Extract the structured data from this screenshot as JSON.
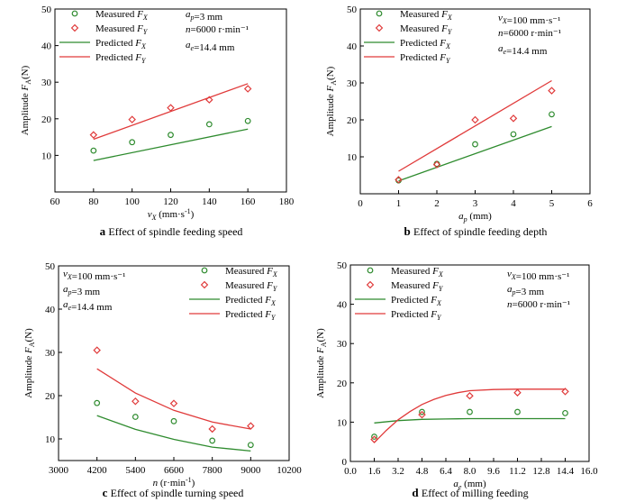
{
  "colors": {
    "measured_x": "#2e8b2e",
    "measured_y": "#e03a3a",
    "predicted_x": "#2e8b2e",
    "predicted_y": "#e03a3a",
    "axis": "#000000"
  },
  "chart_data": [
    {
      "id": "a",
      "type": "scatter",
      "panel_letter": "a",
      "caption": "Effect of spindle feeding speed",
      "xlabel_main": "v",
      "xlabel_sub": "X",
      "xlabel_unit": " (mm·s",
      "ylabel_main": "Amplitude  F",
      "ylabel_sub": "A",
      "ylabel_unit": "(N)",
      "xlim": [
        60,
        180
      ],
      "ylim": [
        0,
        50
      ],
      "xticks": [
        60,
        80,
        100,
        120,
        140,
        160,
        180
      ],
      "xtick_labels": [
        "60",
        "80",
        "100",
        "120",
        "140",
        "160",
        "180"
      ],
      "yticks": [
        0,
        10,
        20,
        30,
        40,
        50
      ],
      "ytick_labels": [
        "",
        "10",
        "20",
        "30",
        "40",
        "50"
      ],
      "series": [
        {
          "name": "Measured F_X",
          "kind": "measured",
          "marker": "circle",
          "color": "#2e8b2e",
          "x": [
            80,
            100,
            120,
            140,
            160
          ],
          "y": [
            11.3,
            13.6,
            15.6,
            18.5,
            19.4
          ]
        },
        {
          "name": "Measured F_Y",
          "kind": "measured",
          "marker": "diamond",
          "color": "#e03a3a",
          "x": [
            80,
            100,
            120,
            140,
            160
          ],
          "y": [
            15.6,
            19.8,
            23.0,
            25.2,
            28.2
          ]
        },
        {
          "name": "Predicted F_X",
          "kind": "predicted",
          "color": "#2e8b2e",
          "x": [
            80,
            160
          ],
          "y": [
            8.6,
            17.2
          ]
        },
        {
          "name": "Predicted F_Y",
          "kind": "predicted",
          "color": "#e03a3a",
          "x": [
            80,
            160
          ],
          "y": [
            14.4,
            29.6
          ]
        }
      ],
      "legend": [
        {
          "kind": "circle",
          "text": "Measured F",
          "sub": "X",
          "color": "#2e8b2e"
        },
        {
          "kind": "diamond",
          "text": "Measured F",
          "sub": "Y",
          "color": "#e03a3a"
        },
        {
          "kind": "line",
          "text": "Predicted F",
          "sub": "X",
          "color": "#2e8b2e"
        },
        {
          "kind": "line",
          "text": "Predicted F",
          "sub": "Y",
          "color": "#e03a3a"
        }
      ],
      "params": [
        "a_p=3 mm",
        "n=6000 r·min⁻¹",
        "a_e=14.4 mm"
      ]
    },
    {
      "id": "b",
      "type": "scatter",
      "panel_letter": "b",
      "caption": "Effect of spindle feeding depth",
      "xlabel_main": "a",
      "xlabel_sub": "p",
      "xlabel_unit": " (mm)",
      "ylabel_main": "Amplitude  F",
      "ylabel_sub": "A",
      "ylabel_unit": "(N)",
      "xlim": [
        0,
        6
      ],
      "ylim": [
        0,
        50
      ],
      "xticks": [
        0,
        1,
        2,
        3,
        4,
        5,
        6
      ],
      "xtick_labels": [
        "0",
        "1",
        "2",
        "3",
        "4",
        "5",
        "6"
      ],
      "yticks": [
        0,
        10,
        20,
        30,
        40,
        50
      ],
      "ytick_labels": [
        "",
        "10",
        "20",
        "30",
        "40",
        "50"
      ],
      "series": [
        {
          "name": "Measured F_X",
          "kind": "measured",
          "marker": "circle",
          "color": "#2e8b2e",
          "x": [
            1,
            2,
            3,
            4,
            5
          ],
          "y": [
            3.6,
            8.1,
            13.4,
            16.1,
            21.5
          ]
        },
        {
          "name": "Measured F_Y",
          "kind": "measured",
          "marker": "diamond",
          "color": "#e03a3a",
          "x": [
            1,
            2,
            3,
            4,
            5
          ],
          "y": [
            3.8,
            7.9,
            20.0,
            20.4,
            27.9
          ]
        },
        {
          "name": "Predicted F_X",
          "kind": "predicted",
          "color": "#2e8b2e",
          "x": [
            1,
            5
          ],
          "y": [
            3.5,
            18.2
          ]
        },
        {
          "name": "Predicted F_Y",
          "kind": "predicted",
          "color": "#e03a3a",
          "x": [
            1,
            5
          ],
          "y": [
            6.1,
            30.6
          ]
        }
      ],
      "legend": [
        {
          "kind": "circle",
          "text": "Measured F",
          "sub": "X",
          "color": "#2e8b2e"
        },
        {
          "kind": "diamond",
          "text": "Measured F",
          "sub": "Y",
          "color": "#e03a3a"
        },
        {
          "kind": "line",
          "text": "Predicted F",
          "sub": "X",
          "color": "#2e8b2e"
        },
        {
          "kind": "line",
          "text": "Predicted F",
          "sub": "Y",
          "color": "#e03a3a"
        }
      ],
      "params": [
        "v_X=100 mm·s⁻¹",
        "n=6000 r·min⁻¹",
        "a_e=14.4 mm"
      ]
    },
    {
      "id": "c",
      "type": "scatter",
      "panel_letter": "c",
      "caption": "Effect of spindle turning speed",
      "xlabel_main": "n",
      "xlabel_sub": "",
      "xlabel_unit": " (r·min",
      "ylabel_main": "Amplitude  F",
      "ylabel_sub": "A",
      "ylabel_unit": "(N)",
      "xlim": [
        3000,
        10200
      ],
      "ylim": [
        5,
        50
      ],
      "xticks": [
        3000,
        4200,
        5400,
        6600,
        7800,
        9000,
        10200
      ],
      "xtick_labels": [
        "3000",
        "4200",
        "5400",
        "6600",
        "7800",
        "9000",
        "10200"
      ],
      "yticks": [
        10,
        20,
        30,
        40,
        50
      ],
      "ytick_labels": [
        "10",
        "20",
        "30",
        "40",
        "50"
      ],
      "series": [
        {
          "name": "Measured F_X",
          "kind": "measured",
          "marker": "circle",
          "color": "#2e8b2e",
          "x": [
            4200,
            5400,
            6600,
            7800,
            9000
          ],
          "y": [
            18.3,
            15.1,
            14.1,
            9.6,
            8.6
          ]
        },
        {
          "name": "Measured F_Y",
          "kind": "measured",
          "marker": "diamond",
          "color": "#e03a3a",
          "x": [
            4200,
            5400,
            6600,
            7800,
            9000
          ],
          "y": [
            30.5,
            18.7,
            18.2,
            12.3,
            13.0
          ]
        },
        {
          "name": "Predicted F_X",
          "kind": "predicted",
          "color": "#2e8b2e",
          "x": [
            4200,
            5400,
            6600,
            7800,
            9000
          ],
          "y": [
            15.4,
            12.2,
            9.9,
            8.1,
            7.2
          ]
        },
        {
          "name": "Predicted F_Y",
          "kind": "predicted",
          "color": "#e03a3a",
          "x": [
            4200,
            5400,
            6600,
            7800,
            9000
          ],
          "y": [
            26.2,
            20.6,
            16.6,
            13.9,
            12.3
          ]
        }
      ],
      "legend": [
        {
          "kind": "circle",
          "text": "Measured F",
          "sub": "X",
          "color": "#2e8b2e"
        },
        {
          "kind": "diamond",
          "text": "Measured F",
          "sub": "Y",
          "color": "#e03a3a"
        },
        {
          "kind": "line",
          "text": "Predicted F",
          "sub": "X",
          "color": "#2e8b2e"
        },
        {
          "kind": "line",
          "text": "Predicted F",
          "sub": "Y",
          "color": "#e03a3a"
        }
      ],
      "params": [
        "v_X=100 mm·s⁻¹",
        "a_p=3 mm",
        "a_e=14.4 mm"
      ]
    },
    {
      "id": "d",
      "type": "scatter",
      "panel_letter": "d",
      "caption": "Effect of milling feeding",
      "xlabel_main": "a",
      "xlabel_sub": "e",
      "xlabel_unit": " (mm)",
      "ylabel_main": "Amplitude  F",
      "ylabel_sub": "A",
      "ylabel_unit": "(N)",
      "xlim": [
        0,
        16
      ],
      "ylim": [
        0,
        50
      ],
      "xticks": [
        0,
        1.6,
        3.2,
        4.8,
        6.4,
        8.0,
        9.6,
        11.2,
        12.8,
        14.4,
        16.0
      ],
      "xtick_labels": [
        "0.0",
        "1.6",
        "3.2",
        "4.8",
        "6.4",
        "8.0",
        "9.6",
        "11.2",
        "12.8",
        "14.4",
        "16.0"
      ],
      "yticks": [
        0,
        10,
        20,
        30,
        40,
        50
      ],
      "ytick_labels": [
        "0",
        "10",
        "20",
        "30",
        "40",
        "50"
      ],
      "series": [
        {
          "name": "Measured F_X",
          "kind": "measured",
          "marker": "circle",
          "color": "#2e8b2e",
          "x": [
            1.6,
            4.8,
            8.0,
            11.2,
            14.4
          ],
          "y": [
            6.3,
            12.6,
            12.6,
            12.6,
            12.3
          ]
        },
        {
          "name": "Measured F_Y",
          "kind": "measured",
          "marker": "diamond",
          "color": "#e03a3a",
          "x": [
            1.6,
            4.8,
            8.0,
            11.2,
            14.4
          ],
          "y": [
            5.6,
            11.9,
            16.7,
            17.5,
            17.8
          ]
        },
        {
          "name": "Predicted F_X",
          "kind": "predicted",
          "color": "#2e8b2e",
          "x": [
            1.6,
            3.2,
            4.8,
            6.4,
            8.0,
            9.6,
            11.2,
            12.8,
            14.4
          ],
          "y": [
            9.8,
            10.4,
            10.7,
            10.8,
            10.9,
            10.9,
            10.9,
            10.9,
            10.9
          ]
        },
        {
          "name": "Predicted F_Y",
          "kind": "predicted",
          "color": "#e03a3a",
          "x": [
            1.6,
            2.4,
            3.2,
            4.0,
            4.8,
            5.6,
            6.4,
            7.2,
            8.0,
            9.6,
            11.2,
            12.8,
            14.4
          ],
          "y": [
            4.8,
            7.9,
            10.6,
            12.7,
            14.5,
            15.8,
            16.8,
            17.5,
            18.0,
            18.3,
            18.4,
            18.4,
            18.4
          ]
        }
      ],
      "legend": [
        {
          "kind": "circle",
          "text": "Measured F",
          "sub": "X",
          "color": "#2e8b2e"
        },
        {
          "kind": "diamond",
          "text": "Measured F",
          "sub": "Y",
          "color": "#e03a3a"
        },
        {
          "kind": "line",
          "text": "Predicted F",
          "sub": "X",
          "color": "#2e8b2e"
        },
        {
          "kind": "line",
          "text": "Predicted F",
          "sub": "Y",
          "color": "#e03a3a"
        }
      ],
      "params": [
        "v_X=100 mm·s⁻¹",
        "a_p=3 mm",
        "n=6000 r·min⁻¹"
      ]
    }
  ]
}
